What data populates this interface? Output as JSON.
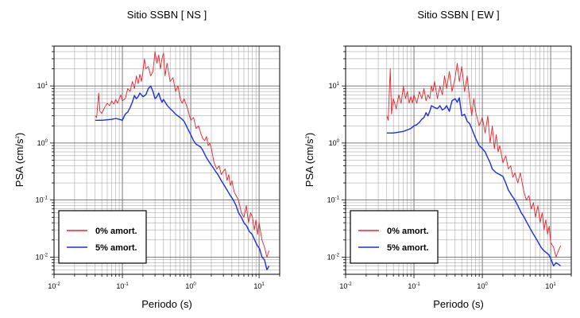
{
  "chart_data": [
    {
      "type": "line",
      "title": "Sitio SSBN [ NS ]",
      "xlabel": "Periodo (s)",
      "ylabel_base": "PSA (cm/s",
      "ylabel_exp": "2",
      "ylabel_close": ")",
      "x_scale": "log",
      "y_scale": "log",
      "xlim": [
        0.01,
        20
      ],
      "ylim": [
        0.005,
        50
      ],
      "x_ticks": [
        {
          "base": "10",
          "exp": "-2",
          "v": 0.01
        },
        {
          "base": "10",
          "exp": "-1",
          "v": 0.1
        },
        {
          "base": "10",
          "exp": "0",
          "v": 1
        },
        {
          "base": "10",
          "exp": "1",
          "v": 10
        }
      ],
      "y_ticks": [
        {
          "base": "10",
          "exp": "-2",
          "v": 0.01
        },
        {
          "base": "10",
          "exp": "-1",
          "v": 0.1
        },
        {
          "base": "10",
          "exp": "0",
          "v": 1
        },
        {
          "base": "10",
          "exp": "1",
          "v": 10
        }
      ],
      "grid": true,
      "legend_position": "bottom-left",
      "series": [
        {
          "name": "0% amort.",
          "color": "#e8232b",
          "x": [
            0.04,
            0.042,
            0.045,
            0.047,
            0.05,
            0.055,
            0.06,
            0.065,
            0.07,
            0.075,
            0.08,
            0.085,
            0.09,
            0.095,
            0.1,
            0.11,
            0.12,
            0.13,
            0.14,
            0.15,
            0.16,
            0.17,
            0.18,
            0.19,
            0.2,
            0.21,
            0.22,
            0.24,
            0.26,
            0.28,
            0.3,
            0.32,
            0.34,
            0.36,
            0.38,
            0.4,
            0.42,
            0.45,
            0.5,
            0.55,
            0.6,
            0.65,
            0.7,
            0.75,
            0.8,
            0.9,
            1.0,
            1.1,
            1.2,
            1.3,
            1.4,
            1.5,
            1.6,
            1.7,
            1.8,
            1.9,
            2.0,
            2.2,
            2.4,
            2.6,
            2.8,
            3.0,
            3.2,
            3.4,
            3.6,
            3.8,
            4.0,
            4.3,
            4.6,
            5.0,
            5.5,
            6.0,
            6.5,
            7.0,
            7.5,
            8.0,
            8.5,
            9.0,
            9.5,
            10.0,
            11.0,
            12.0,
            13.0,
            14.0
          ],
          "y": [
            3,
            2.8,
            7.5,
            3.6,
            3.3,
            4.2,
            5,
            4.5,
            5.5,
            4.8,
            5.8,
            5,
            6,
            7,
            5.5,
            6,
            9,
            8,
            12,
            9,
            15,
            11,
            16,
            12,
            18,
            30,
            20,
            22,
            15,
            18,
            40,
            25,
            35,
            20,
            30,
            38,
            15,
            25,
            12,
            14,
            8,
            10,
            6,
            5,
            6,
            4,
            2.5,
            2.8,
            1.8,
            2,
            1.5,
            1.2,
            1.1,
            1.3,
            0.9,
            1,
            0.8,
            0.45,
            0.35,
            0.4,
            0.28,
            0.32,
            0.35,
            0.22,
            0.28,
            0.18,
            0.22,
            0.14,
            0.12,
            0.1,
            0.06,
            0.05,
            0.08,
            0.04,
            0.06,
            0.05,
            0.03,
            0.045,
            0.025,
            0.04,
            0.02,
            0.015,
            0.01,
            0.013
          ]
        },
        {
          "name": "5% amort.",
          "color": "#1a2fe0",
          "x": [
            0.04,
            0.05,
            0.06,
            0.07,
            0.08,
            0.09,
            0.1,
            0.11,
            0.12,
            0.13,
            0.14,
            0.15,
            0.16,
            0.17,
            0.18,
            0.2,
            0.22,
            0.24,
            0.26,
            0.28,
            0.3,
            0.32,
            0.34,
            0.36,
            0.38,
            0.4,
            0.45,
            0.5,
            0.55,
            0.6,
            0.7,
            0.8,
            0.9,
            1.0,
            1.1,
            1.2,
            1.3,
            1.4,
            1.5,
            1.7,
            1.9,
            2.1,
            2.3,
            2.5,
            2.8,
            3.1,
            3.4,
            3.8,
            4.2,
            4.6,
            5.0,
            5.5,
            6.0,
            6.6,
            7.2,
            7.9,
            8.6,
            9.4,
            10.2,
            11.0,
            12.0,
            13.0,
            14.0
          ],
          "y": [
            2.5,
            2.5,
            2.55,
            2.6,
            2.7,
            2.6,
            2.5,
            3.2,
            3.5,
            4.2,
            5.2,
            6.8,
            6,
            6.5,
            7.5,
            6.5,
            7,
            9,
            10,
            8,
            6,
            6.5,
            7.5,
            6,
            5.2,
            5.8,
            4.6,
            4,
            3.6,
            3.2,
            2.8,
            2.4,
            1.8,
            1.4,
            1.1,
            0.95,
            0.9,
            0.85,
            0.75,
            0.55,
            0.45,
            0.38,
            0.32,
            0.28,
            0.22,
            0.18,
            0.15,
            0.12,
            0.1,
            0.08,
            0.06,
            0.05,
            0.04,
            0.035,
            0.028,
            0.025,
            0.02,
            0.016,
            0.014,
            0.01,
            0.009,
            0.006,
            0.007
          ]
        }
      ]
    },
    {
      "type": "line",
      "title": "Sitio SSBN [ EW ]",
      "xlabel": "Periodo (s)",
      "ylabel_base": "PSA (cm/s",
      "ylabel_exp": "2",
      "ylabel_close": ")",
      "x_scale": "log",
      "y_scale": "log",
      "xlim": [
        0.01,
        20
      ],
      "ylim": [
        0.005,
        50
      ],
      "x_ticks": [
        {
          "base": "10",
          "exp": "-2",
          "v": 0.01
        },
        {
          "base": "10",
          "exp": "-1",
          "v": 0.1
        },
        {
          "base": "10",
          "exp": "0",
          "v": 1
        },
        {
          "base": "10",
          "exp": "1",
          "v": 10
        }
      ],
      "y_ticks": [
        {
          "base": "10",
          "exp": "-2",
          "v": 0.01
        },
        {
          "base": "10",
          "exp": "-1",
          "v": 0.1
        },
        {
          "base": "10",
          "exp": "0",
          "v": 1
        },
        {
          "base": "10",
          "exp": "1",
          "v": 10
        }
      ],
      "grid": true,
      "legend_position": "bottom-left",
      "series": [
        {
          "name": "0% amort.",
          "color": "#e8232b",
          "x": [
            0.04,
            0.042,
            0.045,
            0.047,
            0.05,
            0.055,
            0.06,
            0.065,
            0.07,
            0.075,
            0.08,
            0.085,
            0.09,
            0.095,
            0.1,
            0.11,
            0.12,
            0.13,
            0.14,
            0.15,
            0.16,
            0.17,
            0.18,
            0.19,
            0.2,
            0.22,
            0.24,
            0.26,
            0.28,
            0.3,
            0.33,
            0.36,
            0.4,
            0.43,
            0.46,
            0.5,
            0.55,
            0.6,
            0.65,
            0.7,
            0.75,
            0.8,
            0.9,
            1.0,
            1.1,
            1.2,
            1.3,
            1.4,
            1.5,
            1.6,
            1.7,
            1.8,
            2.0,
            2.2,
            2.4,
            2.6,
            2.8,
            3.0,
            3.3,
            3.6,
            4.0,
            4.4,
            4.8,
            5.2,
            5.6,
            6.0,
            6.5,
            7.0,
            7.5,
            8.0,
            8.5,
            9.0,
            9.5,
            10.0,
            11.0,
            12.0,
            13.0,
            14.0
          ],
          "y": [
            3,
            2.5,
            20,
            3.2,
            6,
            4,
            7,
            5,
            10,
            6,
            8,
            5,
            6.5,
            5,
            7,
            5,
            8,
            6,
            9,
            5.5,
            7,
            6,
            10,
            8,
            12,
            6,
            10,
            7,
            15,
            9,
            18,
            8,
            14,
            25,
            12,
            22,
            8,
            15,
            6,
            3,
            6,
            3.5,
            2,
            2.8,
            1.5,
            3,
            1,
            2,
            0.8,
            1.4,
            0.7,
            0.9,
            0.45,
            0.6,
            0.35,
            0.4,
            0.25,
            0.3,
            0.2,
            0.3,
            0.15,
            0.1,
            0.12,
            0.07,
            0.09,
            0.05,
            0.08,
            0.04,
            0.06,
            0.03,
            0.045,
            0.025,
            0.035,
            0.018,
            0.015,
            0.01,
            0.013,
            0.016
          ]
        },
        {
          "name": "5% amort.",
          "color": "#1a2fe0",
          "x": [
            0.04,
            0.05,
            0.06,
            0.07,
            0.08,
            0.09,
            0.1,
            0.11,
            0.12,
            0.13,
            0.14,
            0.15,
            0.16,
            0.17,
            0.18,
            0.2,
            0.22,
            0.24,
            0.26,
            0.28,
            0.3,
            0.33,
            0.36,
            0.4,
            0.43,
            0.46,
            0.5,
            0.55,
            0.6,
            0.65,
            0.7,
            0.8,
            0.9,
            1.0,
            1.1,
            1.2,
            1.3,
            1.4,
            1.6,
            1.8,
            2.0,
            2.2,
            2.4,
            2.7,
            3.0,
            3.3,
            3.7,
            4.1,
            4.5,
            5.0,
            5.5,
            6.0,
            6.6,
            7.2,
            7.9,
            8.6,
            9.4,
            10.2,
            11.0,
            12.0,
            13.0,
            14.0
          ],
          "y": [
            1.5,
            1.5,
            1.55,
            1.6,
            1.7,
            1.8,
            2,
            2.1,
            2.3,
            2.6,
            2.8,
            3.4,
            3,
            3.6,
            4.5,
            4.2,
            4,
            4.5,
            3.8,
            4,
            4.5,
            3.6,
            5.5,
            6,
            5.2,
            6.2,
            3,
            3.2,
            2.4,
            2.2,
            1.8,
            1.2,
            0.9,
            0.8,
            0.7,
            0.55,
            0.45,
            0.35,
            0.3,
            0.28,
            0.26,
            0.2,
            0.15,
            0.12,
            0.1,
            0.08,
            0.06,
            0.05,
            0.04,
            0.032,
            0.026,
            0.022,
            0.018,
            0.015,
            0.013,
            0.012,
            0.011,
            0.009,
            0.007,
            0.008,
            0.0075,
            0.007
          ]
        }
      ]
    }
  ]
}
